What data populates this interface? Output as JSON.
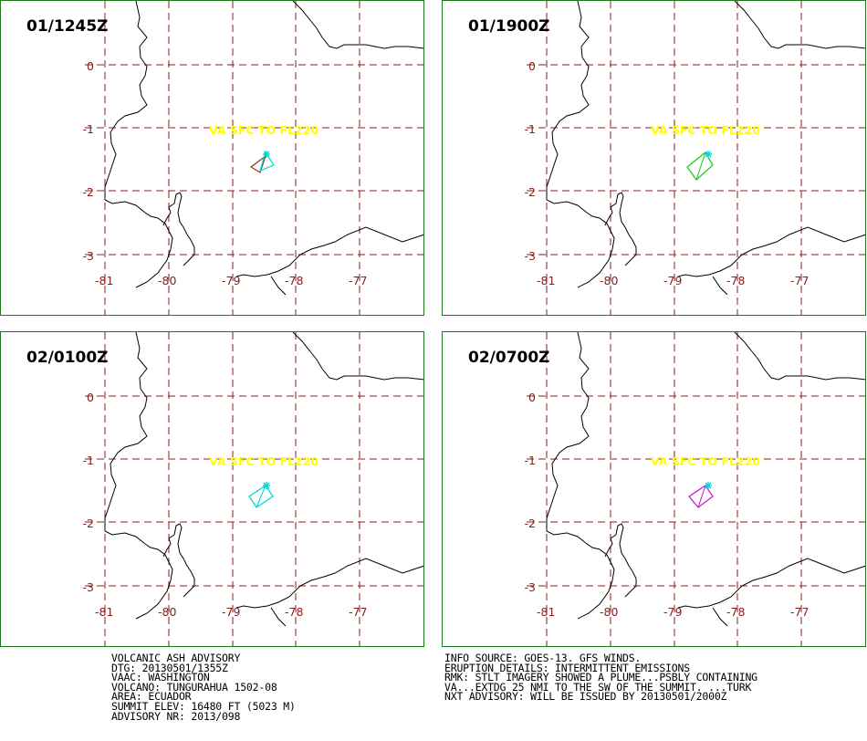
{
  "panels": [
    {
      "time": "01/1245Z",
      "label": "VA SFC TO FL220",
      "plume_color": "#8b3a1c"
    },
    {
      "time": "01/1900Z",
      "label": "VA SFC TO FL220",
      "plume_color": "#22cc22"
    },
    {
      "time": "02/0100Z",
      "label": "VA SFC TO FL220",
      "plume_color": "#00d8d8"
    },
    {
      "time": "02/0700Z",
      "label": "VA SFC TO FL220",
      "plume_color": "#cc22cc"
    }
  ],
  "axis": {
    "lon_labels": [
      "-81",
      "-80",
      "-79",
      "-78",
      "-77"
    ],
    "lat_labels": [
      "0",
      "-1",
      "-2",
      "-3"
    ]
  },
  "colors": {
    "grid": "#8b1c1c",
    "label_text": "#ffff00",
    "volcano_marker": "#00d8d8",
    "frame": "#1c7a1c",
    "coast": "#000000"
  },
  "advisory_left": [
    "VOLCANIC ASH ADVISORY",
    "DTG: 20130501/1355Z",
    "VAAC: WASHINGTON",
    "VOLCANO: TUNGURAHUA 1502-08",
    "AREA: ECUADOR",
    "SUMMIT ELEV: 16480 FT (5023 M)",
    "ADVISORY NR: 2013/098"
  ],
  "advisory_right": [
    "INFO SOURCE: GOES-13. GFS WINDS.",
    "ERUPTION DETAILS: INTERMITTENT EMISSIONS",
    "RMK: STLT IMAGERY SHOWED A PLUME...PSBLY CONTAINING",
    "VA...EXTDG 25 NMI TO THE SW OF THE SUMMIT. ...TURK",
    "NXT ADVISORY: WILL BE ISSUED BY 20130501/2000Z"
  ]
}
